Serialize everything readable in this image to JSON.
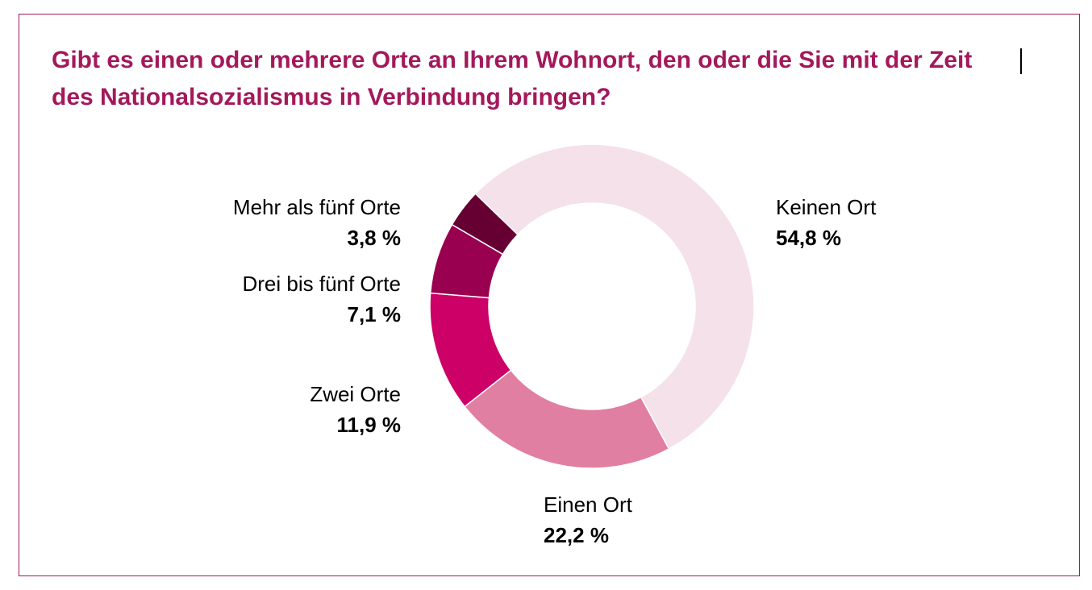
{
  "title": {
    "line1": "Gibt es einen oder mehrere Orte an Ihrem Wohnort, den oder die Sie mit der Zeit",
    "line2": "des Nationalsozialismus in Verbindung bringen?"
  },
  "chart_data": {
    "type": "pie",
    "variant": "donut",
    "title": "Gibt es einen oder mehrere Orte an Ihrem Wohnort, den oder die Sie mit der Zeit des Nationalsozialismus in Verbindung bringen?",
    "unit": "%",
    "slices": [
      {
        "label": "Keinen Ort",
        "value": 54.8,
        "value_label": "54,8 %",
        "color": "#f5e1ea"
      },
      {
        "label": "Einen Ort",
        "value": 22.2,
        "value_label": "22,2 %",
        "color": "#e07fa2"
      },
      {
        "label": "Zwei Orte",
        "value": 11.9,
        "value_label": "11,9 %",
        "color": "#cc0066"
      },
      {
        "label": "Drei bis fünf Orte",
        "value": 7.1,
        "value_label": "7,1 %",
        "color": "#990050"
      },
      {
        "label": "Mehr als fünf Orte",
        "value": 3.8,
        "value_label": "3,8 %",
        "color": "#660033"
      }
    ]
  }
}
